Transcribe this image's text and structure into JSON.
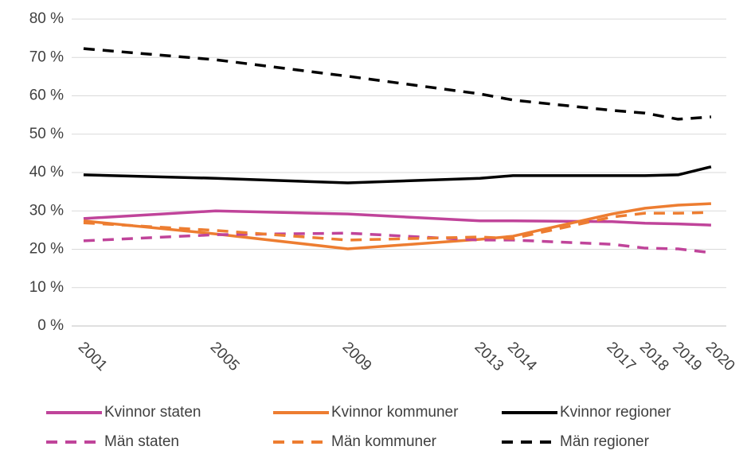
{
  "chart_data": {
    "type": "line",
    "x": [
      2001,
      2005,
      2009,
      2013,
      2014,
      2017,
      2018,
      2019,
      2020
    ],
    "xlim": [
      2000.64,
      2020.46
    ],
    "xticks": [
      2001,
      2005,
      2009,
      2013,
      2014,
      2017,
      2018,
      2019,
      2020
    ],
    "ylim": [
      0,
      80
    ],
    "yticks": [
      {
        "value": 0,
        "label": "0 %"
      },
      {
        "value": 10,
        "label": "10 %"
      },
      {
        "value": 20,
        "label": "20 %"
      },
      {
        "value": 30,
        "label": "30 %"
      },
      {
        "value": 40,
        "label": "40 %"
      },
      {
        "value": 50,
        "label": "50 %"
      },
      {
        "value": 60,
        "label": "60 %"
      },
      {
        "value": 70,
        "label": "70 %"
      },
      {
        "value": 80,
        "label": "80 %"
      }
    ],
    "grid": true,
    "legend": "bottom",
    "series": [
      {
        "name": "Kvinnor staten",
        "color": "#c0449a",
        "dashed": false,
        "values": [
          28.0,
          30.0,
          29.2,
          27.4,
          27.4,
          27.2,
          26.8,
          26.6,
          26.3
        ]
      },
      {
        "name": "Kvinnor kommuner",
        "color": "#ed7d31",
        "dashed": false,
        "values": [
          27.4,
          24.0,
          20.1,
          22.6,
          23.4,
          29.2,
          30.7,
          31.5,
          31.9
        ]
      },
      {
        "name": "Kvinnor regioner",
        "color": "#000000",
        "dashed": false,
        "values": [
          39.4,
          38.5,
          37.3,
          38.5,
          39.2,
          39.2,
          39.2,
          39.4,
          41.5
        ]
      },
      {
        "name": "Män staten",
        "color": "#c0449a",
        "dashed": true,
        "values": [
          22.2,
          23.8,
          24.2,
          22.4,
          22.4,
          21.3,
          20.3,
          20.1,
          19.1
        ]
      },
      {
        "name": "Män kommuner",
        "color": "#ed7d31",
        "dashed": true,
        "values": [
          26.9,
          24.9,
          22.4,
          23.2,
          22.8,
          28.4,
          29.4,
          29.4,
          29.6
        ]
      },
      {
        "name": "Män regioner",
        "color": "#000000",
        "dashed": true,
        "values": [
          72.3,
          69.4,
          65.1,
          60.5,
          58.9,
          56.2,
          55.5,
          53.9,
          54.5
        ]
      }
    ]
  }
}
